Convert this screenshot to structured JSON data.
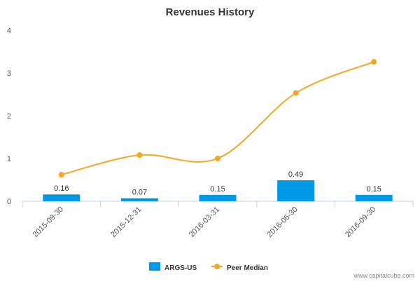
{
  "chart_data": {
    "type": "bar",
    "title": "Revenues History",
    "categories": [
      "2015-09-30",
      "2015-12-31",
      "2016-03-31",
      "2016-06-30",
      "2016-09-30"
    ],
    "series": [
      {
        "name": "ARGS-US",
        "type": "bar",
        "color": "#0099e6",
        "values": [
          0.16,
          0.07,
          0.15,
          0.49,
          0.15
        ],
        "labels": [
          "0.16",
          "0.07",
          "0.15",
          "0.49",
          "0.15"
        ]
      },
      {
        "name": "Peer Median",
        "type": "line",
        "color": "#f5a623",
        "values": [
          0.62,
          1.08,
          1.0,
          2.53,
          3.26
        ]
      }
    ],
    "ylim": [
      0,
      4
    ],
    "yticks": [
      "0",
      "1",
      "2",
      "3",
      "4"
    ],
    "grid": false,
    "legend": "bottom-center"
  },
  "watermark": "www.capitalcube.com"
}
